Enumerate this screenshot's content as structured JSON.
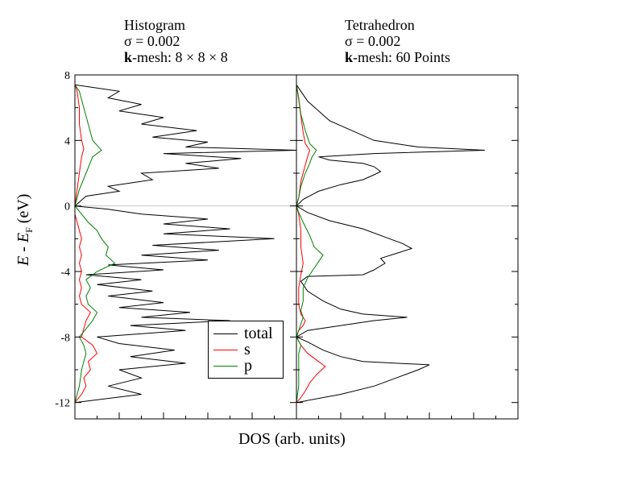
{
  "chart_data": [
    {
      "type": "line",
      "title_lines": [
        "Histogram",
        "σ = 0.002",
        "k-mesh: 8 × 8 × 8"
      ],
      "xlabel": "DOS (arb. units)",
      "ylabel": "E - E_F (eV)",
      "ylim": [
        -13,
        8
      ],
      "yticks": [
        "8",
        "4",
        "0",
        "-4",
        "-8",
        "-12"
      ],
      "series": [
        {
          "name": "total",
          "color": "#000000",
          "points": [
            [
              -12.0,
              0.0
            ],
            [
              -11.5,
              0.3
            ],
            [
              -11.0,
              0.15
            ],
            [
              -10.5,
              0.3
            ],
            [
              -10.0,
              0.2
            ],
            [
              -9.6,
              0.5
            ],
            [
              -9.2,
              0.25
            ],
            [
              -8.8,
              0.45
            ],
            [
              -8.4,
              0.2
            ],
            [
              -8.0,
              0.1
            ],
            [
              -7.6,
              0.5
            ],
            [
              -7.3,
              0.25
            ],
            [
              -7.0,
              0.7
            ],
            [
              -6.8,
              0.3
            ],
            [
              -6.5,
              0.52
            ],
            [
              -6.2,
              0.2
            ],
            [
              -5.9,
              0.4
            ],
            [
              -5.5,
              0.15
            ],
            [
              -5.2,
              0.35
            ],
            [
              -4.8,
              0.1
            ],
            [
              -4.5,
              0.3
            ],
            [
              -4.2,
              0.05
            ],
            [
              -3.9,
              0.4
            ],
            [
              -3.6,
              0.15
            ],
            [
              -3.3,
              0.6
            ],
            [
              -3.0,
              0.3
            ],
            [
              -2.7,
              0.65
            ],
            [
              -2.4,
              0.35
            ],
            [
              -2.0,
              0.9
            ],
            [
              -1.7,
              0.4
            ],
            [
              -1.4,
              0.7
            ],
            [
              -1.1,
              0.4
            ],
            [
              -0.8,
              0.6
            ],
            [
              -0.5,
              0.3
            ],
            [
              -0.2,
              0.15
            ],
            [
              0.0,
              0.0
            ],
            [
              0.6,
              0.05
            ],
            [
              0.9,
              0.2
            ],
            [
              1.2,
              0.15
            ],
            [
              1.6,
              0.35
            ],
            [
              2.0,
              0.3
            ],
            [
              2.3,
              0.65
            ],
            [
              2.6,
              0.5
            ],
            [
              2.9,
              0.75
            ],
            [
              3.2,
              0.4
            ],
            [
              3.4,
              1.0
            ],
            [
              3.6,
              0.5
            ],
            [
              3.9,
              0.6
            ],
            [
              4.2,
              0.35
            ],
            [
              4.6,
              0.55
            ],
            [
              5.0,
              0.3
            ],
            [
              5.4,
              0.4
            ],
            [
              5.8,
              0.2
            ],
            [
              6.2,
              0.3
            ],
            [
              6.6,
              0.15
            ],
            [
              7.0,
              0.2
            ],
            [
              7.4,
              0.0
            ]
          ]
        },
        {
          "name": "s",
          "color": "#ff0000",
          "points": [
            [
              -12.0,
              0.0
            ],
            [
              -11.5,
              0.03
            ],
            [
              -11.0,
              0.05
            ],
            [
              -10.5,
              0.04
            ],
            [
              -10.0,
              0.07
            ],
            [
              -9.5,
              0.06
            ],
            [
              -9.0,
              0.1
            ],
            [
              -8.5,
              0.08
            ],
            [
              -8.0,
              0.03
            ],
            [
              -7.5,
              0.04
            ],
            [
              -7.0,
              0.05
            ],
            [
              -6.5,
              0.07
            ],
            [
              -6.0,
              0.03
            ],
            [
              -5.5,
              0.02
            ],
            [
              -5.0,
              0.03
            ],
            [
              -4.5,
              0.02
            ],
            [
              -4.0,
              0.03
            ],
            [
              -3.5,
              0.02
            ],
            [
              -3.0,
              0.03
            ],
            [
              -2.5,
              0.02
            ],
            [
              -2.0,
              0.03
            ],
            [
              -1.5,
              0.02
            ],
            [
              -1.0,
              0.01
            ],
            [
              -0.5,
              0.0
            ],
            [
              0.0,
              0.0
            ],
            [
              1.0,
              0.01
            ],
            [
              2.0,
              0.02
            ],
            [
              3.0,
              0.03
            ],
            [
              3.5,
              0.04
            ],
            [
              4.0,
              0.03
            ],
            [
              5.0,
              0.02
            ],
            [
              6.0,
              0.02
            ],
            [
              7.0,
              0.01
            ],
            [
              7.4,
              0.0
            ]
          ]
        },
        {
          "name": "p",
          "color": "#008000",
          "points": [
            [
              -12.0,
              0.0
            ],
            [
              -11.0,
              0.02
            ],
            [
              -10.0,
              0.03
            ],
            [
              -9.0,
              0.05
            ],
            [
              -8.5,
              0.04
            ],
            [
              -8.0,
              0.02
            ],
            [
              -7.5,
              0.05
            ],
            [
              -7.0,
              0.08
            ],
            [
              -6.5,
              0.1
            ],
            [
              -6.0,
              0.06
            ],
            [
              -5.5,
              0.05
            ],
            [
              -5.0,
              0.07
            ],
            [
              -4.5,
              0.05
            ],
            [
              -4.0,
              0.1
            ],
            [
              -3.5,
              0.18
            ],
            [
              -3.0,
              0.14
            ],
            [
              -2.5,
              0.15
            ],
            [
              -2.0,
              0.12
            ],
            [
              -1.5,
              0.1
            ],
            [
              -1.0,
              0.06
            ],
            [
              -0.5,
              0.03
            ],
            [
              0.0,
              0.0
            ],
            [
              1.0,
              0.02
            ],
            [
              2.0,
              0.05
            ],
            [
              3.0,
              0.08
            ],
            [
              3.4,
              0.12
            ],
            [
              4.0,
              0.08
            ],
            [
              5.0,
              0.06
            ],
            [
              6.0,
              0.04
            ],
            [
              7.0,
              0.02
            ],
            [
              7.4,
              0.0
            ]
          ]
        }
      ]
    },
    {
      "type": "line",
      "title_lines": [
        "Tetrahedron",
        "σ = 0.002",
        "k-mesh: 60 Points"
      ],
      "ylim": [
        -13,
        8
      ],
      "series": [
        {
          "name": "total",
          "color": "#000000",
          "points": [
            [
              -12.0,
              0.0
            ],
            [
              -11.5,
              0.2
            ],
            [
              -11.0,
              0.35
            ],
            [
              -10.5,
              0.45
            ],
            [
              -10.0,
              0.55
            ],
            [
              -9.7,
              0.6
            ],
            [
              -9.5,
              0.3
            ],
            [
              -9.2,
              0.2
            ],
            [
              -8.8,
              0.12
            ],
            [
              -8.3,
              0.05
            ],
            [
              -8.0,
              0.0
            ],
            [
              -7.6,
              0.05
            ],
            [
              -7.3,
              0.2
            ],
            [
              -7.0,
              0.35
            ],
            [
              -6.8,
              0.5
            ],
            [
              -6.6,
              0.3
            ],
            [
              -6.3,
              0.2
            ],
            [
              -5.8,
              0.12
            ],
            [
              -5.2,
              0.05
            ],
            [
              -4.6,
              0.02
            ],
            [
              -4.3,
              0.05
            ],
            [
              -4.2,
              0.3
            ],
            [
              -3.9,
              0.35
            ],
            [
              -3.5,
              0.4
            ],
            [
              -3.2,
              0.38
            ],
            [
              -2.9,
              0.45
            ],
            [
              -2.6,
              0.52
            ],
            [
              -2.3,
              0.48
            ],
            [
              -1.9,
              0.4
            ],
            [
              -1.4,
              0.3
            ],
            [
              -0.9,
              0.15
            ],
            [
              -0.4,
              0.05
            ],
            [
              0.0,
              0.0
            ],
            [
              0.4,
              0.03
            ],
            [
              0.9,
              0.1
            ],
            [
              1.3,
              0.2
            ],
            [
              1.6,
              0.3
            ],
            [
              1.9,
              0.35
            ],
            [
              2.1,
              0.38
            ],
            [
              2.4,
              0.35
            ],
            [
              2.6,
              0.3
            ],
            [
              2.8,
              0.15
            ],
            [
              3.0,
              0.1
            ],
            [
              3.2,
              0.35
            ],
            [
              3.4,
              0.85
            ],
            [
              3.6,
              0.55
            ],
            [
              4.0,
              0.35
            ],
            [
              4.6,
              0.25
            ],
            [
              5.2,
              0.15
            ],
            [
              5.8,
              0.1
            ],
            [
              6.4,
              0.05
            ],
            [
              7.0,
              0.02
            ],
            [
              7.4,
              0.0
            ]
          ]
        },
        {
          "name": "s",
          "color": "#ff0000",
          "points": [
            [
              -12.0,
              0.0
            ],
            [
              -11.7,
              0.02
            ],
            [
              -11.3,
              0.04
            ],
            [
              -10.8,
              0.06
            ],
            [
              -10.3,
              0.09
            ],
            [
              -9.8,
              0.13
            ],
            [
              -9.5,
              0.1
            ],
            [
              -9.0,
              0.05
            ],
            [
              -8.5,
              0.02
            ],
            [
              -8.0,
              0.0
            ],
            [
              -7.6,
              0.01
            ],
            [
              -7.3,
              0.03
            ],
            [
              -7.0,
              0.04
            ],
            [
              -6.6,
              0.02
            ],
            [
              -6.0,
              0.01
            ],
            [
              -5.0,
              0.01
            ],
            [
              -4.2,
              0.02
            ],
            [
              -3.5,
              0.03
            ],
            [
              -2.5,
              0.02
            ],
            [
              -1.5,
              0.02
            ],
            [
              -0.5,
              0.01
            ],
            [
              0.0,
              0.0
            ],
            [
              0.5,
              0.01
            ],
            [
              1.5,
              0.02
            ],
            [
              2.5,
              0.04
            ],
            [
              3.0,
              0.05
            ],
            [
              3.4,
              0.06
            ],
            [
              3.8,
              0.04
            ],
            [
              4.5,
              0.03
            ],
            [
              5.5,
              0.02
            ],
            [
              6.5,
              0.01
            ],
            [
              7.4,
              0.0
            ]
          ]
        },
        {
          "name": "p",
          "color": "#008000",
          "points": [
            [
              -12.0,
              0.0
            ],
            [
              -11.0,
              0.01
            ],
            [
              -10.0,
              0.01
            ],
            [
              -9.0,
              0.01
            ],
            [
              -8.5,
              0.02
            ],
            [
              -8.0,
              0.0
            ],
            [
              -7.6,
              0.01
            ],
            [
              -7.2,
              0.02
            ],
            [
              -6.8,
              0.03
            ],
            [
              -6.4,
              0.02
            ],
            [
              -5.8,
              0.03
            ],
            [
              -5.0,
              0.03
            ],
            [
              -4.4,
              0.05
            ],
            [
              -3.8,
              0.08
            ],
            [
              -3.4,
              0.1
            ],
            [
              -3.0,
              0.12
            ],
            [
              -2.5,
              0.08
            ],
            [
              -1.8,
              0.06
            ],
            [
              -1.0,
              0.03
            ],
            [
              -0.4,
              0.01
            ],
            [
              0.0,
              0.0
            ],
            [
              0.5,
              0.01
            ],
            [
              1.2,
              0.02
            ],
            [
              2.0,
              0.04
            ],
            [
              2.6,
              0.06
            ],
            [
              3.0,
              0.07
            ],
            [
              3.4,
              0.09
            ],
            [
              3.8,
              0.06
            ],
            [
              4.6,
              0.04
            ],
            [
              5.6,
              0.02
            ],
            [
              6.6,
              0.01
            ],
            [
              7.4,
              0.0
            ]
          ]
        }
      ]
    }
  ],
  "legend": {
    "entries": [
      {
        "label": "total",
        "color": "#000000"
      },
      {
        "label": "s",
        "color": "#ff0000"
      },
      {
        "label": "p",
        "color": "#008000"
      }
    ]
  },
  "labels": {
    "left_title_1": "Histogram",
    "left_title_2": "σ = 0.002",
    "left_title_3_bold": "k",
    "left_title_3_rest": "-mesh: 8 × 8 × 8",
    "right_title_1": "Tetrahedron",
    "right_title_2": "σ = 0.002",
    "right_title_3_bold": "k",
    "right_title_3_rest": "-mesh: 60 Points",
    "ylabel_E": "E",
    "ylabel_dash": " - ",
    "ylabel_EF": "E",
    "ylabel_F": "F",
    "ylabel_unit": " (eV)",
    "xlabel": "DOS (arb. units)"
  }
}
